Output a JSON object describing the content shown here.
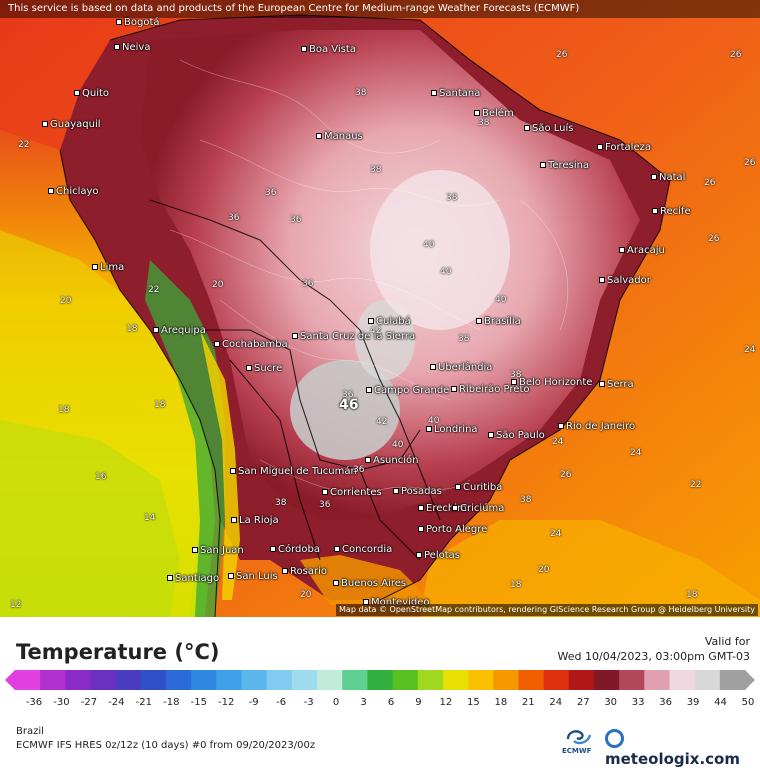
{
  "notice": "This service is based on data and products of the European Centre for Medium-range Weather Forecasts (ECMWF)",
  "credit": "Map data © OpenStreetMap contributors, rendering GIScience Research Group @ Heidelberg University",
  "cities": [
    {
      "name": "Bogotá"
    },
    {
      "name": "Neiva"
    },
    {
      "name": "Boa Vista"
    },
    {
      "name": "Quito"
    },
    {
      "name": "Guayaquil"
    },
    {
      "name": "Santana"
    },
    {
      "name": "Belém"
    },
    {
      "name": "São Luís"
    },
    {
      "name": "Fortaleza"
    },
    {
      "name": "Teresina"
    },
    {
      "name": "Manaus"
    },
    {
      "name": "Natal"
    },
    {
      "name": "Chiclayo"
    },
    {
      "name": "Recife"
    },
    {
      "name": "Aracaju"
    },
    {
      "name": "Lima"
    },
    {
      "name": "Salvador"
    },
    {
      "name": "Cuiabá"
    },
    {
      "name": "Brasília"
    },
    {
      "name": "Arequipa"
    },
    {
      "name": "Cochabamba"
    },
    {
      "name": "Santa Cruz de la Sierra"
    },
    {
      "name": "Sucre"
    },
    {
      "name": "Uberlândia"
    },
    {
      "name": "Campo Grande"
    },
    {
      "name": "Ribeirão Preto"
    },
    {
      "name": "Belo Horizonte"
    },
    {
      "name": "Serra"
    },
    {
      "name": "Londrina"
    },
    {
      "name": "São Paulo"
    },
    {
      "name": "Rio de Janeiro"
    },
    {
      "name": "Asunción"
    },
    {
      "name": "Curitiba"
    },
    {
      "name": "San Miguel de Tucumán"
    },
    {
      "name": "Corrientes"
    },
    {
      "name": "Posadas"
    },
    {
      "name": "Erechim"
    },
    {
      "name": "Criciúma"
    },
    {
      "name": "La Rioja"
    },
    {
      "name": "Porto Alegre"
    },
    {
      "name": "San Juan"
    },
    {
      "name": "Córdoba"
    },
    {
      "name": "Concordia"
    },
    {
      "name": "Pelotas"
    },
    {
      "name": "Santiago"
    },
    {
      "name": "San Luis"
    },
    {
      "name": "Rosario"
    },
    {
      "name": "Buenos Aires"
    },
    {
      "name": "Montevideo"
    }
  ],
  "values": [
    "26",
    "26",
    "22",
    "38",
    "38",
    "38",
    "38",
    "36",
    "36",
    "36",
    "40",
    "40",
    "26",
    "26",
    "26",
    "36",
    "40",
    "38",
    "42",
    "38",
    "40",
    "36",
    "38",
    "26",
    "24",
    "46",
    "42",
    "40",
    "38",
    "36",
    "24",
    "24",
    "22",
    "20",
    "20",
    "18",
    "18",
    "16",
    "14",
    "12",
    "22",
    "20",
    "36",
    "18",
    "20",
    "18",
    "18",
    "24"
  ],
  "legend": {
    "title": "Temperature (°C)",
    "valid_label": "Valid for",
    "valid_time": "Wed 10/04/2023, 03:00pm GMT-03",
    "ticks": [
      "-36",
      "-30",
      "-27",
      "-24",
      "-21",
      "-18",
      "-15",
      "-12",
      "-9",
      "-6",
      "-3",
      "0",
      "3",
      "6",
      "9",
      "12",
      "15",
      "18",
      "21",
      "24",
      "27",
      "30",
      "33",
      "36",
      "39",
      "44",
      "50"
    ],
    "colors": [
      "#e040e0",
      "#b030d0",
      "#8a2bc8",
      "#6a30c0",
      "#4a3cc0",
      "#3050c8",
      "#2c6ad8",
      "#3088e0",
      "#40a0e8",
      "#5cb8ec",
      "#80ccf0",
      "#a0dcf0",
      "#c0ecd8",
      "#60d090",
      "#30b040",
      "#58c020",
      "#a0d820",
      "#e8e000",
      "#f8c000",
      "#f89800",
      "#f06000",
      "#e03010",
      "#b01818",
      "#801828",
      "#b04858",
      "#e0a0b0",
      "#f0d8e0",
      "#d8d8d8",
      "#a0a0a0"
    ]
  },
  "region": "Brazil",
  "model": "ECMWF IFS HRES 0z/12z (10 days) #0 from  09/20/2023/00z",
  "ecmwf_label": "ECMWF",
  "brand": "meteologix.com"
}
